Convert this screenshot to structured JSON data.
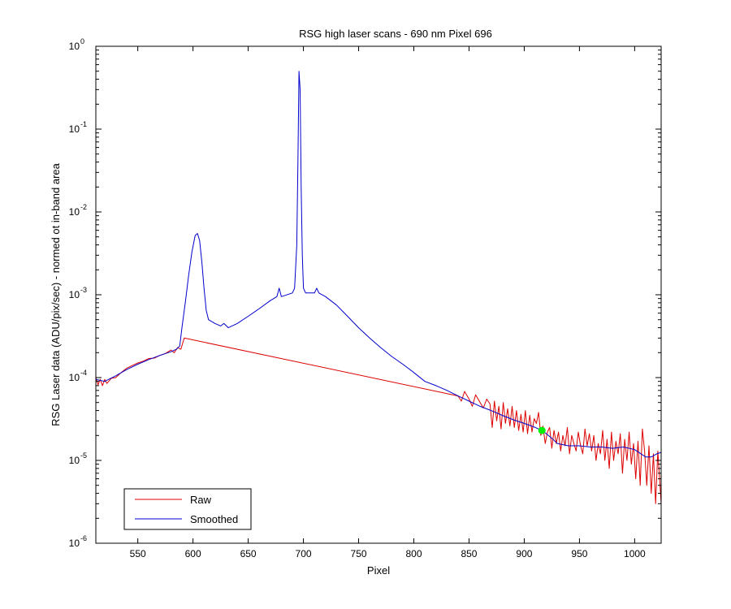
{
  "chart_data": {
    "type": "line",
    "title": "RSG high laser scans  - 690 nm    Pixel 696",
    "xlabel": "Pixel",
    "ylabel": "RSG Laser data (ADU/pix/sec) - normed ot in-band area",
    "xlim": [
      512,
      1024
    ],
    "ylim": [
      1e-06,
      1
    ],
    "yscale": "log",
    "xticks": [
      550,
      600,
      650,
      700,
      750,
      800,
      850,
      900,
      950,
      1000
    ],
    "xtick_labels": [
      "550",
      "600",
      "650",
      "700",
      "750",
      "800",
      "850",
      "900",
      "950",
      "1000"
    ],
    "yticks": [
      {
        "value": 1e-06,
        "base": "10",
        "exp": "-6"
      },
      {
        "value": 1e-05,
        "base": "10",
        "exp": "-5"
      },
      {
        "value": 0.0001,
        "base": "10",
        "exp": "-4"
      },
      {
        "value": 0.001,
        "base": "10",
        "exp": "-3"
      },
      {
        "value": 0.01,
        "base": "10",
        "exp": "-2"
      },
      {
        "value": 0.1,
        "base": "10",
        "exp": "-1"
      },
      {
        "value": 1,
        "base": "10",
        "exp": "0"
      }
    ],
    "grid": false,
    "legend_position": "bottom-left",
    "series": [
      {
        "name": "Smoothed",
        "color": "#0000cc",
        "x": [
          512,
          520,
          530,
          540,
          550,
          560,
          570,
          580,
          585,
          588,
          590,
          593,
          596,
          599,
          602,
          604,
          606,
          608,
          610,
          612,
          614,
          620,
          625,
          628,
          632,
          640,
          650,
          660,
          670,
          676,
          678,
          680,
          690,
          692,
          694,
          695,
          696,
          697,
          698,
          699,
          700,
          702,
          705,
          710,
          712,
          714,
          720,
          730,
          740,
          750,
          760,
          770,
          780,
          790,
          800,
          810,
          820,
          830,
          840,
          850,
          860,
          870,
          880,
          890,
          900,
          910,
          916,
          920,
          925,
          930,
          940,
          950,
          960,
          970,
          980,
          990,
          1000,
          1010,
          1015,
          1020,
          1024
        ],
        "y": [
          9.5e-05,
          9e-05,
          0.000105,
          0.000125,
          0.000145,
          0.000165,
          0.000185,
          0.000205,
          0.00022,
          0.00024,
          0.0004,
          0.0008,
          0.0017,
          0.0033,
          0.0052,
          0.0055,
          0.0045,
          0.0025,
          0.0012,
          0.00065,
          0.0005,
          0.00045,
          0.00042,
          0.00045,
          0.0004,
          0.00045,
          0.00055,
          0.00068,
          0.00085,
          0.00095,
          0.0012,
          0.00095,
          0.00105,
          0.0012,
          0.004,
          0.04,
          0.5,
          0.3,
          0.02,
          0.003,
          0.0012,
          0.00105,
          0.00105,
          0.00105,
          0.0012,
          0.00105,
          0.00095,
          0.00075,
          0.00055,
          0.0004,
          0.0003,
          0.00023,
          0.00018,
          0.000145,
          0.000115,
          9e-05,
          8e-05,
          7e-05,
          6e-05,
          5.2e-05,
          4.5e-05,
          4e-05,
          3.5e-05,
          3.1e-05,
          2.8e-05,
          2.5e-05,
          2.3e-05,
          2.1e-05,
          1.85e-05,
          1.6e-05,
          1.5e-05,
          1.5e-05,
          1.45e-05,
          1.45e-05,
          1.4e-05,
          1.45e-05,
          1.35e-05,
          1.1e-05,
          1.1e-05,
          1.2e-05,
          1.25e-05
        ]
      },
      {
        "name": "Raw",
        "color": "#dd0000",
        "x": [
          512,
          514,
          516,
          518,
          520,
          522,
          526,
          530,
          535,
          540,
          545,
          550,
          555,
          560,
          565,
          570,
          575,
          580,
          583,
          586,
          589,
          592,
          840,
          843,
          846,
          850,
          853,
          856,
          860,
          863,
          866,
          869,
          871,
          873,
          875,
          877,
          879,
          881,
          883,
          885,
          887,
          889,
          891,
          893,
          895,
          897,
          899,
          901,
          903,
          905,
          907,
          909,
          911,
          913,
          915,
          917,
          919,
          921,
          923,
          925,
          927,
          929,
          931,
          933,
          935,
          937,
          939,
          941,
          943,
          945,
          947,
          949,
          951,
          953,
          955,
          957,
          959,
          961,
          963,
          965,
          967,
          969,
          971,
          973,
          975,
          977,
          979,
          981,
          983,
          985,
          987,
          989,
          991,
          993,
          995,
          997,
          999,
          1001,
          1003,
          1005,
          1007,
          1009,
          1011,
          1013,
          1015,
          1017,
          1019,
          1021,
          1023,
          1024
        ],
        "y": [
          0.0001,
          8.2e-05,
          9.5e-05,
          8e-05,
          9.5e-05,
          8.5e-05,
          9.8e-05,
          0.0001,
          0.000115,
          0.00013,
          0.00014,
          0.00015,
          0.000158,
          0.00017,
          0.000172,
          0.000185,
          0.000195,
          0.000215,
          0.0002,
          0.00023,
          0.00022,
          0.0003,
          6e-05,
          5.2e-05,
          6.8e-05,
          5.5e-05,
          4.5e-05,
          6.2e-05,
          5e-05,
          4.3e-05,
          5.5e-05,
          4.8e-05,
          2.5e-05,
          5.2e-05,
          3e-05,
          4.5e-05,
          2.4e-05,
          5e-05,
          2.8e-05,
          4.2e-05,
          2.6e-05,
          4.5e-05,
          2.5e-05,
          4e-05,
          2.3e-05,
          3.6e-05,
          2.2e-05,
          4e-05,
          2.1e-05,
          3.5e-05,
          2.2e-05,
          3.2e-05,
          2.8e-05,
          3.8e-05,
          2e-05,
          2.6e-05,
          1.6e-05,
          2.2e-05,
          2.5e-05,
          1.4e-05,
          2.3e-05,
          1.6e-05,
          2.2e-05,
          1.3e-05,
          2e-05,
          1.5e-05,
          2.5e-05,
          1.2e-05,
          2e-05,
          1.6e-05,
          1.3e-05,
          2.2e-05,
          1.5e-05,
          1.2e-05,
          2.4e-05,
          1.5e-05,
          2.1e-05,
          1.3e-05,
          2e-05,
          1e-05,
          1.6e-05,
          1.2e-05,
          2.3e-05,
          1e-05,
          1.8e-05,
          8e-06,
          2.2e-05,
          1e-05,
          1.7e-05,
          1.2e-05,
          2.1e-05,
          7e-06,
          1.8e-05,
          1e-05,
          2.2e-05,
          9e-06,
          1.6e-05,
          6e-06,
          1.7e-05,
          5e-06,
          2.4e-05,
          1.3e-05,
          5e-06,
          1.5e-05,
          4e-06,
          1.2e-05,
          3e-06,
          1.3e-05,
          5e-06,
          3e-06
        ]
      },
      {
        "name": "Marker",
        "color": "#00ee00",
        "x": [
          916
        ],
        "y": [
          2.3e-05
        ]
      }
    ],
    "legend": {
      "entries": [
        {
          "label": "Raw",
          "color": "#dd0000"
        },
        {
          "label": "Smoothed",
          "color": "#0000cc"
        }
      ]
    }
  }
}
